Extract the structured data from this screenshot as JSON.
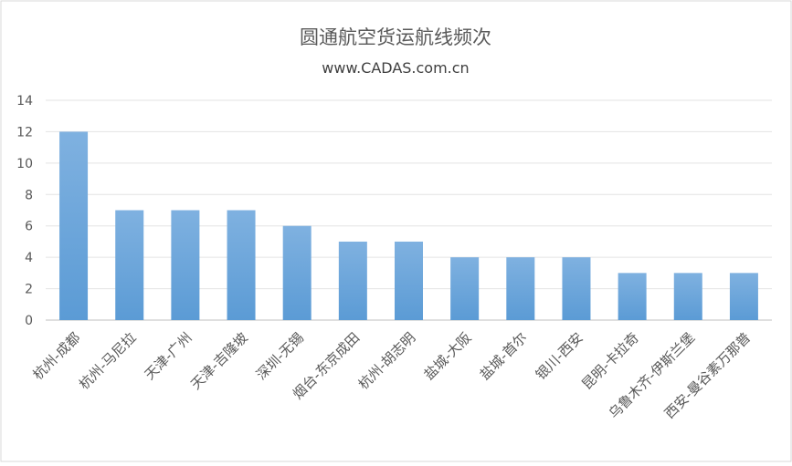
{
  "chart_data": {
    "type": "bar",
    "title": "圆通航空货运航线频次",
    "subtitle": "www.CADAS.com.cn",
    "categories": [
      "杭州-成都",
      "杭州-马尼拉",
      "天津-广州",
      "天津-吉隆坡",
      "深圳-无锡",
      "烟台-东京成田",
      "杭州-胡志明",
      "盐城-大阪",
      "盐城-首尔",
      "银川-西安",
      "昆明-卡拉奇",
      "乌鲁木齐-伊斯兰堡",
      "西安-曼谷素万那普"
    ],
    "values": [
      12,
      7,
      7,
      7,
      6,
      5,
      5,
      4,
      4,
      4,
      3,
      3,
      3
    ],
    "ylim": [
      0,
      14
    ],
    "yticks": [
      "0",
      "2",
      "4",
      "6",
      "8",
      "10",
      "12",
      "14"
    ],
    "grid": true,
    "bar_color": "#5b9bd5",
    "bar_color_top": "#7fb1e0"
  }
}
